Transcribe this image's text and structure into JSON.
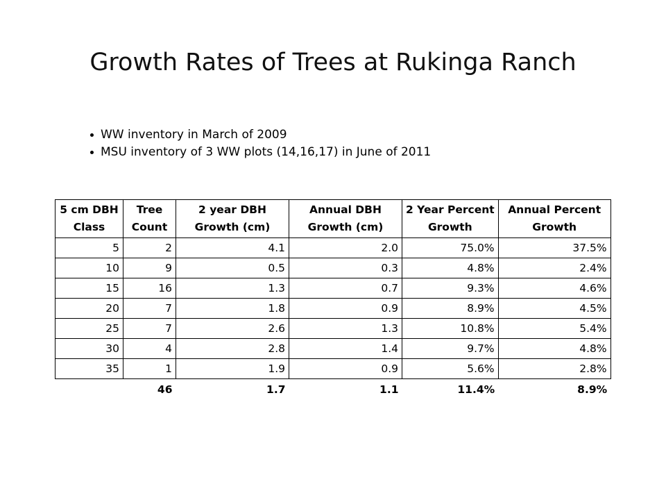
{
  "slide": {
    "title": "Growth Rates of Trees at Rukinga Ranch",
    "bullets": [
      "WW inventory in March of 2009",
      "MSU inventory of 3 WW plots (14,16,17) in June of 2011"
    ]
  },
  "table": {
    "headers": [
      [
        "5 cm DBH",
        "Class"
      ],
      [
        "Tree",
        "Count"
      ],
      [
        "2 year DBH",
        "Growth (cm)"
      ],
      [
        "Annual DBH",
        "Growth (cm)"
      ],
      [
        "2 Year Percent",
        "Growth"
      ],
      [
        "Annual Percent",
        "Growth"
      ]
    ],
    "rows": [
      [
        "5",
        "2",
        "4.1",
        "2.0",
        "75.0%",
        "37.5%"
      ],
      [
        "10",
        "9",
        "0.5",
        "0.3",
        "4.8%",
        "2.4%"
      ],
      [
        "15",
        "16",
        "1.3",
        "0.7",
        "9.3%",
        "4.6%"
      ],
      [
        "20",
        "7",
        "1.8",
        "0.9",
        "8.9%",
        "4.5%"
      ],
      [
        "25",
        "7",
        "2.6",
        "1.3",
        "10.8%",
        "5.4%"
      ],
      [
        "30",
        "4",
        "2.8",
        "1.4",
        "9.7%",
        "4.8%"
      ],
      [
        "35",
        "1",
        "1.9",
        "0.9",
        "5.6%",
        "2.8%"
      ]
    ],
    "totals": [
      "",
      "46",
      "1.7",
      "1.1",
      "11.4%",
      "8.9%"
    ]
  }
}
